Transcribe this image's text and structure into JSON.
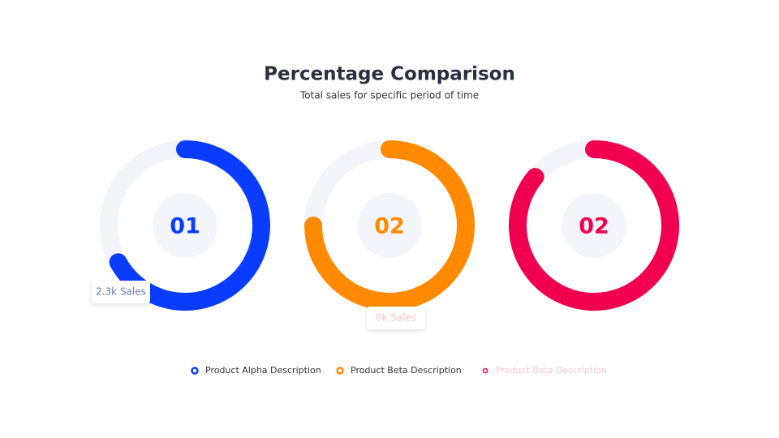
{
  "chart_data": {
    "type": "donut",
    "title": "Percentage Comparison",
    "subtitle": "Total sales for specific period of time",
    "series": [
      {
        "name": "Product Alpha Description",
        "color": "#0a3cff",
        "value": 67,
        "center_label": "01",
        "callout": "2.3k Sales"
      },
      {
        "name": "Product Beta Description",
        "color": "#ff8a00",
        "value": 75,
        "center_label": "02",
        "callout": "8k Sales"
      },
      {
        "name": "Product Beta Description",
        "color": "#f0004f",
        "value": 86,
        "center_label": "02"
      }
    ]
  }
}
